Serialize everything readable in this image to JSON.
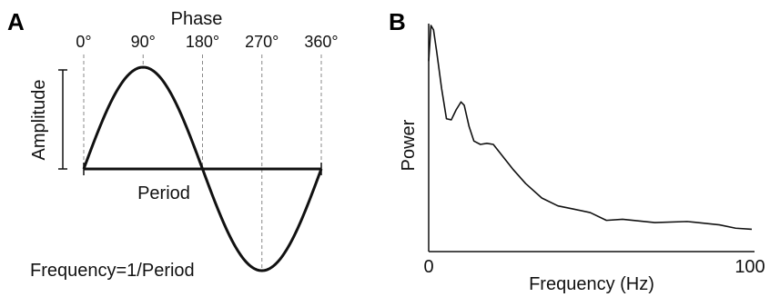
{
  "panel_a": {
    "letter": "A",
    "title": "Phase",
    "phase_ticks": [
      {
        "label": "0°",
        "deg": 0
      },
      {
        "label": "90°",
        "deg": 90
      },
      {
        "label": "180°",
        "deg": 180
      },
      {
        "label": "270°",
        "deg": 270
      },
      {
        "label": "360°",
        "deg": 360
      }
    ],
    "amplitude_label": "Amplitude",
    "period_label": "Period",
    "frequency_label": "Frequency=1/Period",
    "chart_data": {
      "type": "line",
      "function": "sine",
      "x_unit": "degrees",
      "xlim": [
        0,
        360
      ],
      "ylim": [
        -1,
        1
      ],
      "grid": false
    }
  },
  "panel_b": {
    "letter": "B",
    "ylabel": "Power",
    "xlabel": "Frequency (Hz)",
    "x_tick_labels": [
      "0",
      "100"
    ],
    "chart_data": {
      "type": "line",
      "xlabel": "Frequency (Hz)",
      "ylabel": "Power",
      "xlim": [
        0,
        100
      ],
      "ylim": [
        0,
        1
      ],
      "grid": false,
      "x": [
        0,
        0.7,
        1.5,
        2.5,
        4,
        5.5,
        7,
        8.5,
        10,
        11,
        12.5,
        14,
        16,
        18,
        20,
        23,
        26,
        30,
        35,
        40,
        45,
        50,
        55,
        60,
        70,
        80,
        90,
        95,
        100
      ],
      "y": [
        0.84,
        1.0,
        0.98,
        0.88,
        0.72,
        0.58,
        0.58,
        0.62,
        0.66,
        0.64,
        0.55,
        0.48,
        0.47,
        0.47,
        0.47,
        0.41,
        0.36,
        0.29,
        0.23,
        0.19,
        0.18,
        0.16,
        0.13,
        0.13,
        0.12,
        0.12,
        0.11,
        0.09,
        0.09
      ]
    }
  }
}
